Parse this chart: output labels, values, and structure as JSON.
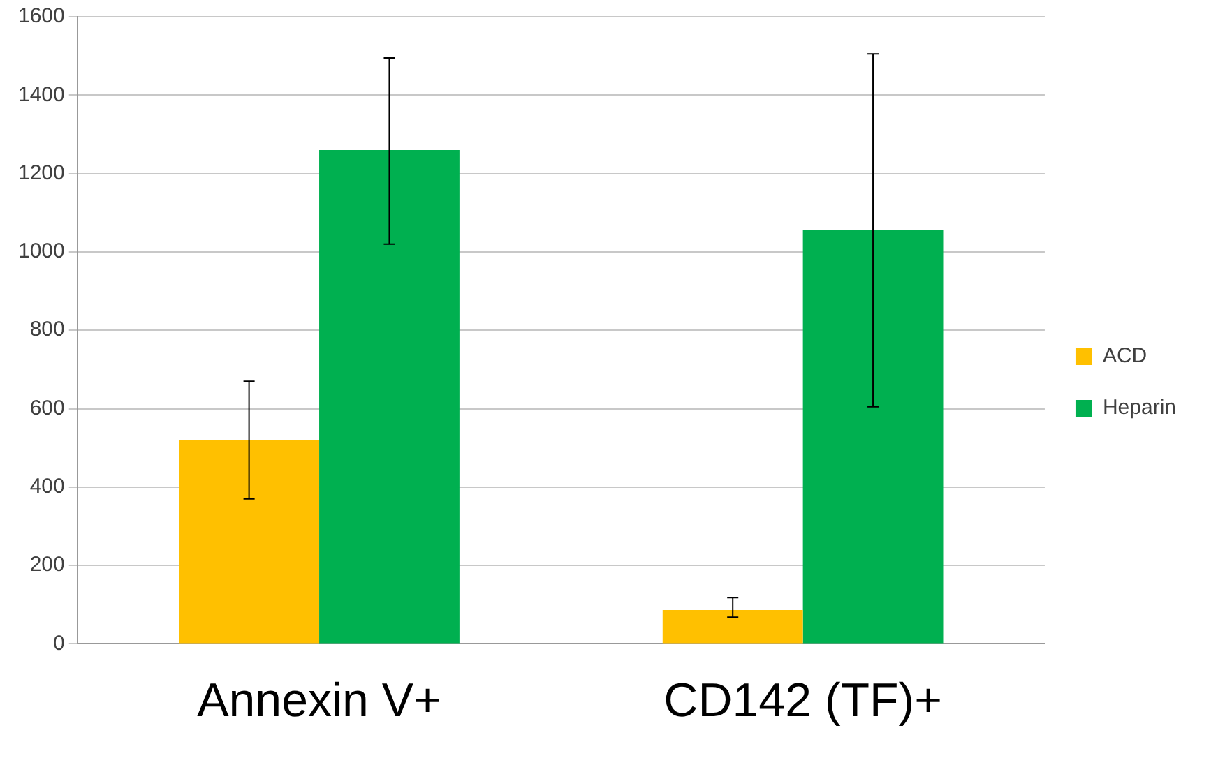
{
  "chart_data": {
    "type": "bar",
    "categories": [
      "Annexin V+",
      "CD142 (TF)+"
    ],
    "series": [
      {
        "name": "ACD",
        "color": "#ffc000",
        "values": [
          520,
          86
        ],
        "errors": [
          [
            370,
            670
          ],
          [
            68,
            118
          ]
        ]
      },
      {
        "name": "Heparin",
        "color": "#00b050",
        "values": [
          1260,
          1055
        ],
        "errors": [
          [
            1020,
            1495
          ],
          [
            605,
            1505
          ]
        ]
      }
    ],
    "ylim": [
      0,
      1600
    ],
    "yticks": [
      0,
      200,
      400,
      600,
      800,
      1000,
      1200,
      1400,
      1600
    ],
    "grid": "y",
    "legend": "right"
  }
}
